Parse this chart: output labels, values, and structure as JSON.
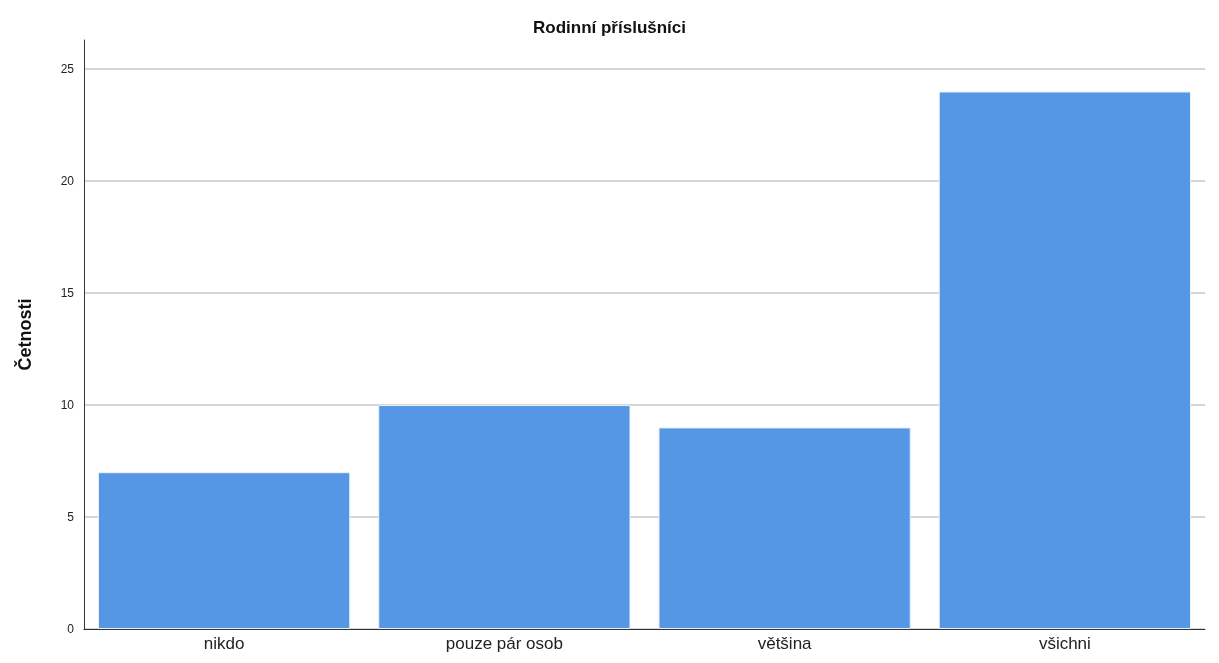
{
  "chart_data": {
    "type": "bar",
    "title": "Rodinní příslušníci",
    "ylabel": "Četnosti",
    "categories": [
      "nikdo",
      "pouze pár osob",
      "většina",
      "všichni"
    ],
    "values": [
      7,
      10,
      9,
      24
    ],
    "color": "#5597e5",
    "ylim": [
      0,
      26.3
    ],
    "yticks": [
      0,
      5,
      10,
      15,
      20,
      25
    ],
    "grid": "y"
  }
}
